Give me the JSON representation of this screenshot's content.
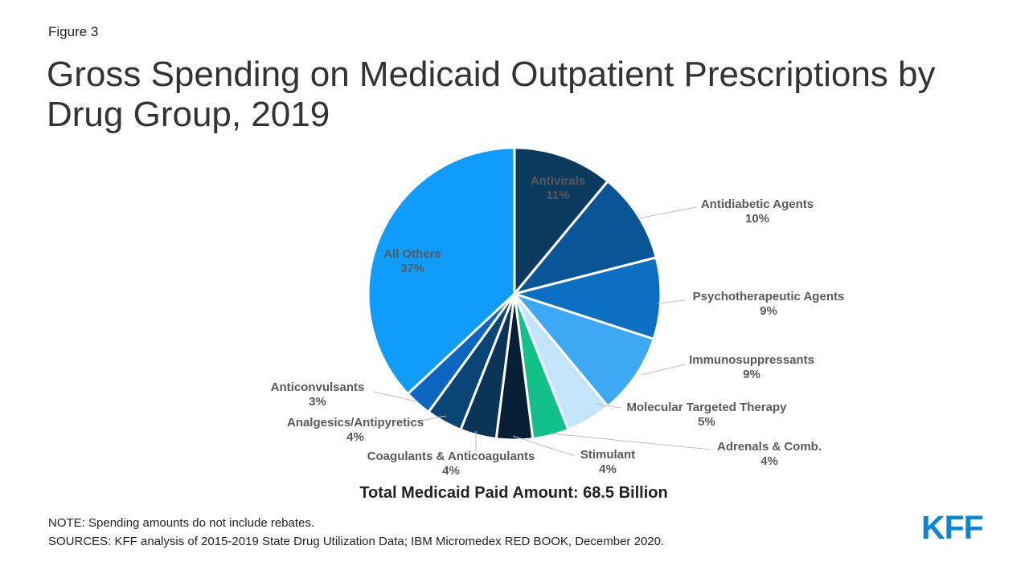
{
  "figure_label": "Figure 3",
  "title": "Gross Spending on Medicaid Outpatient Prescriptions by Drug Group, 2019",
  "total_label": "Total Medicaid Paid Amount: 68.5 Billion",
  "note": "NOTE: Spending amounts do not include rebates.",
  "sources": "SOURCES: KFF analysis of 2015-2019 State Drug Utilization Data; IBM Micromedex RED BOOK, December 2020.",
  "logo": "KFF",
  "chart_data": {
    "type": "pie",
    "title": "Gross Spending on Medicaid Outpatient Prescriptions by Drug Group, 2019",
    "unit": "%",
    "slices": [
      {
        "name": "Antivirals",
        "value": 11,
        "label": "11%",
        "color": "#0b3a5f"
      },
      {
        "name": "Antidiabetic Agents",
        "value": 10,
        "label": "10%",
        "color": "#0a5597"
      },
      {
        "name": "Psychotherapeutic Agents",
        "value": 9,
        "label": "9%",
        "color": "#0b6fc4"
      },
      {
        "name": "Immunosuppressants",
        "value": 9,
        "label": "9%",
        "color": "#3da8f5"
      },
      {
        "name": "Molecular Targeted Therapy",
        "value": 5,
        "label": "5%",
        "color": "#c3e4fb"
      },
      {
        "name": "Adrenals & Comb.",
        "value": 4,
        "label": "4%",
        "color": "#12c08a"
      },
      {
        "name": "Stimulant",
        "value": 4,
        "label": "4%",
        "color": "#071f35"
      },
      {
        "name": "Coagulants & Anticoagulants",
        "value": 4,
        "label": "4%",
        "color": "#0b3557"
      },
      {
        "name": "Analgesics/Antipyretics",
        "value": 4,
        "label": "4%",
        "color": "#0b4476"
      },
      {
        "name": "Anticonvulsants",
        "value": 3,
        "label": "3%",
        "color": "#0a66c0"
      },
      {
        "name": "All Others",
        "value": 37,
        "label": "37%",
        "color": "#0f9cfa"
      }
    ],
    "inside_labels": [
      "Antivirals",
      "All Others"
    ],
    "label_color": "#595959",
    "leader_line_color": "#bfbfbf"
  }
}
